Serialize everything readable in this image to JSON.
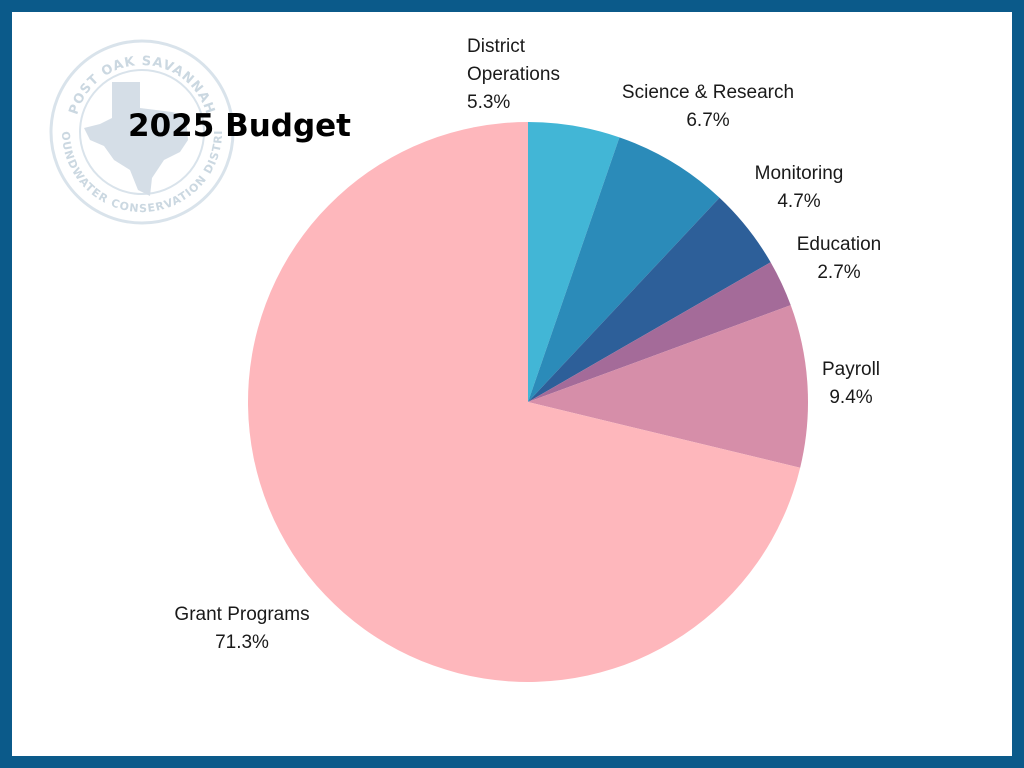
{
  "chart_data": {
    "type": "pie",
    "title": "2025 Budget",
    "slices": [
      {
        "label": "District Operations",
        "value": 5.3,
        "display": "5.3%",
        "color": "#42b6d6"
      },
      {
        "label": "Science & Research",
        "value": 6.7,
        "display": "6.7%",
        "color": "#2b8bb9"
      },
      {
        "label": "Monitoring",
        "value": 4.7,
        "display": "4.7%",
        "color": "#2d5f99"
      },
      {
        "label": "Education",
        "value": 2.7,
        "display": "2.7%",
        "color": "#a46b99"
      },
      {
        "label": "Payroll",
        "value": 9.4,
        "display": "9.4%",
        "color": "#d68ea9"
      },
      {
        "label": "Grant Programs",
        "value": 71.3,
        "display": "71.3%",
        "color": "#feb7bc"
      }
    ]
  },
  "logo": {
    "top_text": "POST OAK SAVANNAH",
    "bottom_text": "GROUNDWATER CONSERVATION DISTRICT"
  },
  "colors": {
    "frame": "#0b5a8a",
    "background": "#ffffff"
  }
}
